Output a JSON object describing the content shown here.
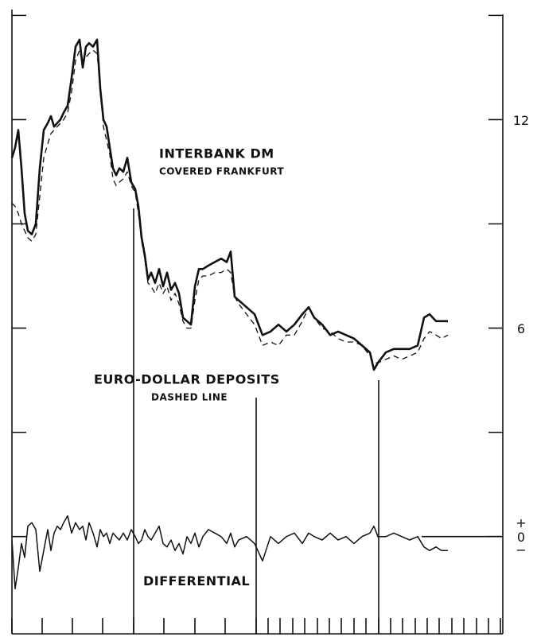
{
  "chart_data": {
    "type": "line",
    "annotations": [
      {
        "text": "INTERBANK DM",
        "style": "big",
        "x": 185,
        "y": 11.0
      },
      {
        "text": "COVERED FRANKFURT",
        "style": "small",
        "x": 185,
        "y": 10.5
      },
      {
        "text": "EURO-DOLLAR DEPOSITS",
        "style": "big",
        "x": 103,
        "y": 4.5
      },
      {
        "text": "DASHED LINE",
        "style": "small",
        "x": 175,
        "y": 4.0
      },
      {
        "text": "DIFFERENTIAL",
        "style": "big",
        "x": 165,
        "y": -1.3
      }
    ],
    "x": [
      0,
      4,
      8,
      12,
      16,
      20,
      25,
      30,
      35,
      40,
      45,
      49,
      53,
      57,
      61,
      65,
      70,
      75,
      80,
      85,
      89,
      93,
      97,
      102,
      107,
      111,
      115,
      119,
      123,
      127,
      131,
      135,
      140,
      145,
      150,
      155,
      159,
      163,
      167,
      171,
      175,
      180,
      185,
      190,
      195,
      200,
      205,
      210,
      215,
      220,
      225,
      230,
      235,
      240,
      247,
      255,
      263,
      270,
      275,
      280,
      285,
      295,
      305,
      315,
      325,
      335,
      345,
      355,
      365,
      373,
      380,
      390,
      400,
      410,
      420,
      430,
      440,
      450,
      455,
      460,
      470,
      480,
      490,
      500,
      510,
      518,
      525,
      533,
      540,
      548
    ],
    "series": [
      {
        "name": "INTERBANK DM",
        "color": "#111111",
        "style": "solid",
        "width": 2.6,
        "values": [
          10.9,
          11.2,
          11.7,
          10.6,
          9.3,
          8.8,
          8.7,
          9.0,
          10.6,
          11.7,
          11.9,
          12.1,
          11.8,
          11.9,
          12.0,
          12.2,
          12.4,
          13.2,
          14.1,
          14.3,
          13.5,
          14.1,
          14.2,
          14.1,
          14.3,
          12.9,
          12.0,
          11.8,
          11.2,
          10.6,
          10.4,
          10.6,
          10.5,
          10.9,
          10.2,
          10.0,
          9.5,
          8.6,
          8.1,
          7.4,
          7.6,
          7.3,
          7.7,
          7.2,
          7.6,
          7.1,
          7.3,
          7.0,
          6.3,
          6.2,
          6.1,
          7.2,
          7.7,
          7.7,
          7.8,
          7.9,
          8.0,
          7.9,
          8.2,
          6.9,
          6.8,
          6.6,
          6.4,
          5.8,
          5.9,
          6.1,
          5.9,
          6.1,
          6.4,
          6.6,
          6.3,
          6.1,
          5.8,
          5.9,
          5.8,
          5.7,
          5.5,
          5.3,
          4.8,
          5.0,
          5.3,
          5.4,
          5.4,
          5.4,
          5.5,
          6.3,
          6.4,
          6.2,
          6.2,
          6.2
        ]
      },
      {
        "name": "EURO-DOLLAR DEPOSITS",
        "color": "#111111",
        "style": "dashed",
        "width": 1.3,
        "values": [
          9.6,
          9.5,
          9.3,
          9.0,
          8.8,
          8.6,
          8.5,
          8.7,
          9.8,
          10.9,
          11.3,
          11.6,
          11.7,
          11.8,
          11.9,
          12.0,
          12.2,
          12.8,
          13.7,
          14.0,
          13.6,
          13.8,
          13.9,
          14.0,
          13.9,
          13.0,
          11.8,
          11.4,
          11.0,
          10.3,
          10.1,
          10.2,
          10.3,
          10.5,
          10.1,
          9.9,
          9.3,
          8.5,
          8.0,
          7.3,
          7.2,
          7.0,
          7.3,
          7.0,
          7.2,
          6.8,
          7.0,
          6.7,
          6.2,
          6.0,
          6.0,
          6.8,
          7.4,
          7.5,
          7.5,
          7.6,
          7.6,
          7.7,
          7.6,
          6.9,
          6.7,
          6.4,
          6.1,
          5.5,
          5.6,
          5.5,
          5.8,
          5.8,
          6.2,
          6.6,
          6.3,
          6.0,
          5.9,
          5.7,
          5.6,
          5.6,
          5.5,
          5.2,
          5.0,
          5.0,
          5.1,
          5.2,
          5.1,
          5.2,
          5.3,
          5.7,
          5.9,
          5.8,
          5.7,
          5.8
        ]
      },
      {
        "name": "DIFFERENTIAL",
        "color": "#111111",
        "style": "solid",
        "width": 1.5,
        "values": [
          -0.1,
          -1.5,
          -0.9,
          -0.2,
          -0.6,
          0.3,
          0.4,
          0.2,
          -1.0,
          -0.4,
          0.2,
          -0.4,
          0.1,
          0.3,
          0.2,
          0.4,
          0.6,
          0.1,
          0.4,
          0.2,
          0.3,
          -0.1,
          0.4,
          0.1,
          -0.3,
          0.2,
          0.0,
          0.1,
          -0.2,
          0.1,
          0.0,
          -0.1,
          0.1,
          -0.1,
          0.2,
          0.0,
          -0.2,
          -0.1,
          0.2,
          0.0,
          -0.1,
          0.1,
          0.3,
          -0.2,
          -0.3,
          -0.1,
          -0.4,
          -0.2,
          -0.5,
          0.0,
          -0.2,
          0.1,
          -0.3,
          0.0,
          0.2,
          0.1,
          0.0,
          -0.2,
          0.1,
          -0.3,
          -0.1,
          0.0,
          -0.2,
          -0.7,
          0.0,
          -0.2,
          0.0,
          0.1,
          -0.2,
          0.1,
          0.0,
          -0.1,
          0.1,
          -0.1,
          0.0,
          -0.2,
          0.0,
          0.1,
          0.3,
          0.0,
          0.0,
          0.1,
          0.0,
          -0.1,
          0.0,
          -0.3,
          -0.4,
          -0.3,
          -0.4,
          -0.4
        ]
      }
    ],
    "xlim": [
      0,
      617
    ],
    "xticks": [
      0,
      38,
      76,
      114,
      153,
      191,
      230,
      268,
      307,
      322,
      337,
      353,
      368,
      384,
      399,
      414,
      430,
      445,
      461,
      476,
      491,
      507,
      522,
      537,
      553,
      568,
      584,
      599,
      614
    ],
    "x_markers": [
      153,
      307,
      461
    ],
    "ylim": [
      -2.8,
      15.1
    ],
    "yticks": [
      0,
      6,
      12
    ],
    "minor_yticks": [
      3,
      9,
      15
    ],
    "zero_signs": [
      "+",
      "−"
    ],
    "grid": false
  }
}
